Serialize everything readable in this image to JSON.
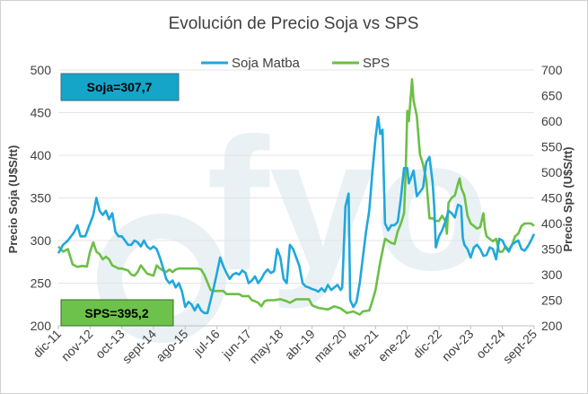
{
  "chart_data": {
    "type": "line",
    "title": "Evolución de Precio Soja vs SPS",
    "ylabel_left": "Precio Soja (U$S/tt)",
    "ylabel_right": "Precio Sps (U$S/tt)",
    "ylim_left": [
      200,
      500
    ],
    "ylim_right": [
      200,
      700
    ],
    "yticks_left": [
      "200",
      "250",
      "300",
      "350",
      "400",
      "450",
      "500"
    ],
    "yticks_right": [
      "200",
      "250",
      "300",
      "350",
      "400",
      "450",
      "500",
      "550",
      "600",
      "650",
      "700"
    ],
    "x_tick_labels": [
      "dic-11",
      "nov-12",
      "oct-13",
      "sept-14",
      "ago-15",
      "jul-16",
      "jun-17",
      "may-18",
      "abr-19",
      "mar-20",
      "feb-21",
      "ene-22",
      "dic-22",
      "nov-23",
      "oct-24",
      "sept-25"
    ],
    "legend": [
      "Soja Matba",
      "SPS"
    ],
    "legend_position": "top",
    "annotations": [
      "Soja=307,7",
      "SPS=395,2"
    ],
    "watermark": "fyo",
    "colors": {
      "soja": "#1fa8dc",
      "sps": "#6cbf46",
      "soja_box": "#14a5c9",
      "sps_box": "#6cc24a"
    },
    "series": [
      {
        "name": "Soja Matba",
        "axis": "left",
        "points": [
          [
            0,
            285
          ],
          [
            0.15,
            295
          ],
          [
            0.3,
            300
          ],
          [
            0.5,
            310
          ],
          [
            0.6,
            318
          ],
          [
            0.7,
            305
          ],
          [
            0.85,
            305
          ],
          [
            1,
            320
          ],
          [
            1.1,
            330
          ],
          [
            1.2,
            350
          ],
          [
            1.3,
            335
          ],
          [
            1.4,
            330
          ],
          [
            1.5,
            335
          ],
          [
            1.6,
            325
          ],
          [
            1.7,
            332
          ],
          [
            1.8,
            310
          ],
          [
            1.9,
            305
          ],
          [
            2,
            305
          ],
          [
            2.1,
            300
          ],
          [
            2.2,
            295
          ],
          [
            2.3,
            295
          ],
          [
            2.4,
            300
          ],
          [
            2.5,
            298
          ],
          [
            2.6,
            293
          ],
          [
            2.7,
            300
          ],
          [
            2.8,
            293
          ],
          [
            2.9,
            290
          ],
          [
            3,
            293
          ],
          [
            3.1,
            290
          ],
          [
            3.2,
            280
          ],
          [
            3.3,
            268
          ],
          [
            3.4,
            255
          ],
          [
            3.5,
            250
          ],
          [
            3.6,
            253
          ],
          [
            3.7,
            245
          ],
          [
            3.8,
            250
          ],
          [
            3.9,
            240
          ],
          [
            4,
            222
          ],
          [
            4.1,
            228
          ],
          [
            4.2,
            225
          ],
          [
            4.3,
            218
          ],
          [
            4.4,
            225
          ],
          [
            4.5,
            218
          ],
          [
            4.6,
            215
          ],
          [
            4.7,
            215
          ],
          [
            4.8,
            230
          ],
          [
            4.9,
            245
          ],
          [
            5,
            262
          ],
          [
            5.1,
            280
          ],
          [
            5.2,
            270
          ],
          [
            5.3,
            262
          ],
          [
            5.4,
            255
          ],
          [
            5.5,
            260
          ],
          [
            5.6,
            262
          ],
          [
            5.7,
            260
          ],
          [
            5.8,
            265
          ],
          [
            5.9,
            262
          ],
          [
            6,
            250
          ],
          [
            6.1,
            253
          ],
          [
            6.2,
            258
          ],
          [
            6.3,
            250
          ],
          [
            6.4,
            255
          ],
          [
            6.5,
            262
          ],
          [
            6.6,
            266
          ],
          [
            6.7,
            262
          ],
          [
            6.8,
            264
          ],
          [
            6.9,
            290
          ],
          [
            7,
            280
          ],
          [
            7.1,
            255
          ],
          [
            7.2,
            250
          ],
          [
            7.3,
            295
          ],
          [
            7.4,
            290
          ],
          [
            7.5,
            280
          ],
          [
            7.6,
            270
          ],
          [
            7.7,
            250
          ],
          [
            7.8,
            246
          ],
          [
            7.9,
            245
          ],
          [
            8,
            243
          ],
          [
            8.1,
            242
          ],
          [
            8.2,
            240
          ],
          [
            8.3,
            244
          ],
          [
            8.4,
            240
          ],
          [
            8.5,
            248
          ],
          [
            8.6,
            242
          ],
          [
            8.7,
            245
          ],
          [
            8.8,
            248
          ],
          [
            8.9,
            242
          ],
          [
            8.95,
            245
          ],
          [
            9.05,
            340
          ],
          [
            9.15,
            355
          ],
          [
            9.2,
            230
          ],
          [
            9.3,
            222
          ],
          [
            9.4,
            228
          ],
          [
            9.5,
            250
          ],
          [
            9.6,
            280
          ],
          [
            9.7,
            310
          ],
          [
            9.8,
            335
          ],
          [
            9.9,
            380
          ],
          [
            10,
            420
          ],
          [
            10.08,
            445
          ],
          [
            10.15,
            425
          ],
          [
            10.22,
            430
          ],
          [
            10.3,
            320
          ],
          [
            10.4,
            312
          ],
          [
            10.5,
            318
          ],
          [
            10.6,
            318
          ],
          [
            10.7,
            322
          ],
          [
            10.8,
            350
          ],
          [
            10.9,
            385
          ],
          [
            11,
            385
          ],
          [
            11.05,
            367
          ],
          [
            11.1,
            372
          ],
          [
            11.2,
            382
          ],
          [
            11.3,
            352
          ],
          [
            11.4,
            357
          ],
          [
            11.5,
            362
          ],
          [
            11.6,
            392
          ],
          [
            11.7,
            398
          ],
          [
            11.8,
            368
          ],
          [
            11.85,
            340
          ],
          [
            11.9,
            292
          ],
          [
            12,
            305
          ],
          [
            12.1,
            312
          ],
          [
            12.2,
            322
          ],
          [
            12.3,
            335
          ],
          [
            12.4,
            332
          ],
          [
            12.5,
            327
          ],
          [
            12.6,
            342
          ],
          [
            12.7,
            340
          ],
          [
            12.75,
            303
          ],
          [
            12.8,
            295
          ],
          [
            12.9,
            290
          ],
          [
            13,
            280
          ],
          [
            13.1,
            292
          ],
          [
            13.2,
            295
          ],
          [
            13.3,
            290
          ],
          [
            13.4,
            282
          ],
          [
            13.5,
            283
          ],
          [
            13.6,
            292
          ],
          [
            13.7,
            290
          ],
          [
            13.8,
            278
          ],
          [
            13.9,
            302
          ],
          [
            14,
            300
          ],
          [
            14.1,
            292
          ],
          [
            14.2,
            287
          ],
          [
            14.3,
            295
          ],
          [
            14.4,
            298
          ],
          [
            14.5,
            300
          ],
          [
            14.6,
            290
          ],
          [
            14.7,
            288
          ],
          [
            14.8,
            293
          ],
          [
            14.9,
            300
          ],
          [
            15,
            307.7
          ]
        ]
      },
      {
        "name": "SPS",
        "axis": "right",
        "points": [
          [
            0,
            355
          ],
          [
            0.15,
            345
          ],
          [
            0.3,
            350
          ],
          [
            0.45,
            320
          ],
          [
            0.6,
            315
          ],
          [
            0.75,
            317
          ],
          [
            0.9,
            316
          ],
          [
            1,
            345
          ],
          [
            1.1,
            363
          ],
          [
            1.2,
            345
          ],
          [
            1.3,
            340
          ],
          [
            1.4,
            330
          ],
          [
            1.5,
            335
          ],
          [
            1.6,
            330
          ],
          [
            1.7,
            318
          ],
          [
            1.8,
            315
          ],
          [
            1.9,
            312
          ],
          [
            2,
            312
          ],
          [
            2.1,
            310
          ],
          [
            2.2,
            308
          ],
          [
            2.3,
            300
          ],
          [
            2.4,
            298
          ],
          [
            2.5,
            305
          ],
          [
            2.6,
            318
          ],
          [
            2.7,
            310
          ],
          [
            2.8,
            302
          ],
          [
            2.9,
            300
          ],
          [
            3,
            298
          ],
          [
            3.1,
            318
          ],
          [
            3.2,
            312
          ],
          [
            3.3,
            308
          ],
          [
            3.4,
            305
          ],
          [
            3.5,
            310
          ],
          [
            3.6,
            305
          ],
          [
            3.7,
            310
          ],
          [
            3.8,
            312
          ],
          [
            4,
            312
          ],
          [
            4.2,
            312
          ],
          [
            4.4,
            312
          ],
          [
            4.5,
            310
          ],
          [
            4.6,
            300
          ],
          [
            4.7,
            285
          ],
          [
            4.8,
            270
          ],
          [
            4.9,
            268
          ],
          [
            5.2,
            268
          ],
          [
            5.3,
            262
          ],
          [
            5.4,
            262
          ],
          [
            5.7,
            262
          ],
          [
            5.8,
            258
          ],
          [
            6,
            258
          ],
          [
            6.1,
            250
          ],
          [
            6.2,
            248
          ],
          [
            6.3,
            245
          ],
          [
            6.4,
            238
          ],
          [
            6.5,
            248
          ],
          [
            6.6,
            250
          ],
          [
            6.8,
            250
          ],
          [
            7,
            252
          ],
          [
            7.2,
            248
          ],
          [
            7.3,
            245
          ],
          [
            7.5,
            252
          ],
          [
            7.7,
            252
          ],
          [
            7.9,
            252
          ],
          [
            8,
            240
          ],
          [
            8.2,
            235
          ],
          [
            8.5,
            232
          ],
          [
            8.7,
            238
          ],
          [
            8.9,
            234
          ],
          [
            9.1,
            225
          ],
          [
            9.3,
            228
          ],
          [
            9.5,
            222
          ],
          [
            9.6,
            228
          ],
          [
            9.8,
            230
          ],
          [
            9.9,
            248
          ],
          [
            10,
            270
          ],
          [
            10.15,
            325
          ],
          [
            10.3,
            370
          ],
          [
            10.5,
            362
          ],
          [
            10.6,
            360
          ],
          [
            10.7,
            385
          ],
          [
            10.8,
            400
          ],
          [
            10.9,
            420
          ],
          [
            10.95,
            500
          ],
          [
            11,
            620
          ],
          [
            11.05,
            600
          ],
          [
            11.1,
            640
          ],
          [
            11.15,
            682
          ],
          [
            11.2,
            640
          ],
          [
            11.3,
            610
          ],
          [
            11.4,
            535
          ],
          [
            11.5,
            515
          ],
          [
            11.6,
            485
          ],
          [
            11.7,
            410
          ],
          [
            11.8,
            410
          ],
          [
            11.9,
            405
          ],
          [
            12,
            405
          ],
          [
            12.1,
            415
          ],
          [
            12.2,
            405
          ],
          [
            12.25,
            380
          ],
          [
            12.3,
            440
          ],
          [
            12.4,
            450
          ],
          [
            12.5,
            455
          ],
          [
            12.6,
            478
          ],
          [
            12.65,
            488
          ],
          [
            12.7,
            470
          ],
          [
            12.8,
            455
          ],
          [
            12.9,
            415
          ],
          [
            13,
            400
          ],
          [
            13.1,
            395
          ],
          [
            13.2,
            390
          ],
          [
            13.3,
            393
          ],
          [
            13.4,
            420
          ],
          [
            13.45,
            390
          ],
          [
            13.5,
            375
          ],
          [
            13.6,
            370
          ],
          [
            13.7,
            365
          ],
          [
            13.8,
            370
          ],
          [
            13.9,
            345
          ],
          [
            14,
            345
          ],
          [
            14.1,
            355
          ],
          [
            14.2,
            348
          ],
          [
            14.3,
            358
          ],
          [
            14.4,
            375
          ],
          [
            14.5,
            380
          ],
          [
            14.6,
            395
          ],
          [
            14.7,
            400
          ],
          [
            14.8,
            400
          ],
          [
            14.9,
            400
          ],
          [
            15,
            395.2
          ]
        ]
      }
    ]
  }
}
